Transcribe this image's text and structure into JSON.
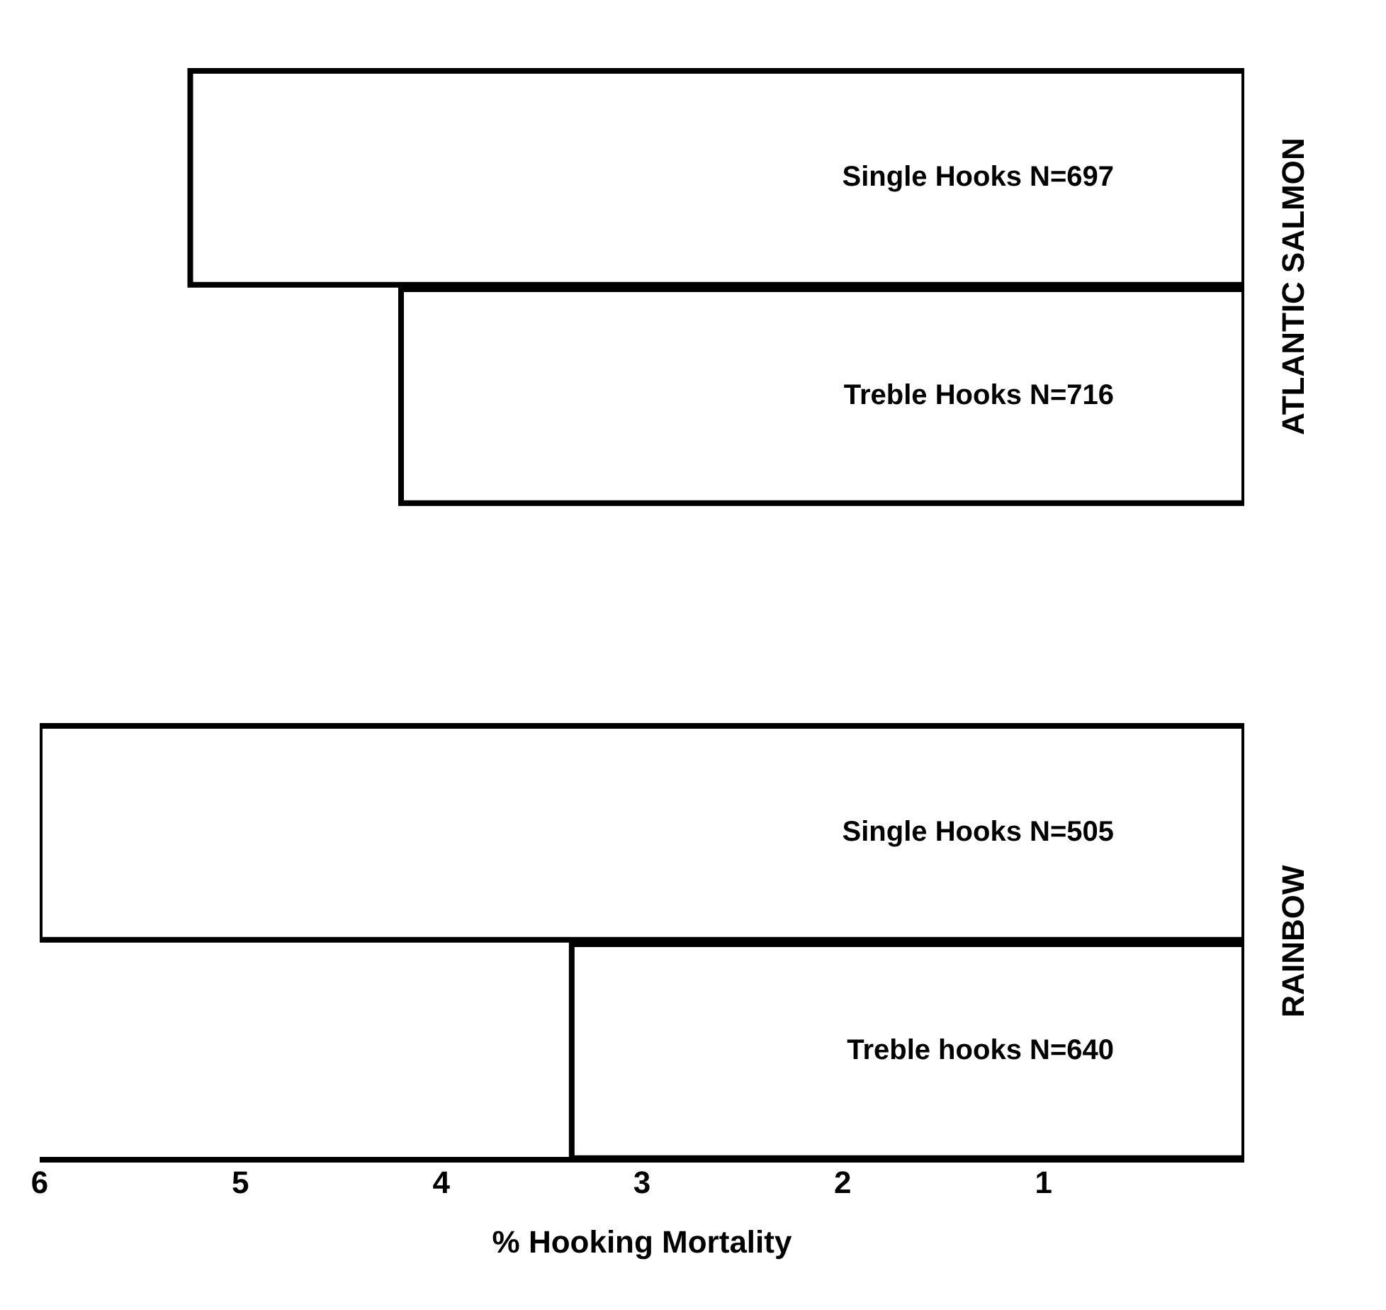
{
  "chart_data": {
    "type": "bar",
    "orientation": "horizontal",
    "xlabel": "% Hooking Mortality",
    "categories": [
      "Single Hooks N=697",
      "Treble Hooks N=716",
      null,
      "Single Hooks N=505",
      "Treble hooks N=640"
    ],
    "values": [
      5.25,
      4.2,
      null,
      6.0,
      3.35
    ],
    "color": "#ffffff",
    "xlim": [
      6,
      0
    ],
    "xticks": [
      6,
      5,
      4,
      3,
      2,
      1
    ],
    "grid": false,
    "annotations": [
      "ATLANTIC SALMON",
      "RAINBOW"
    ]
  }
}
